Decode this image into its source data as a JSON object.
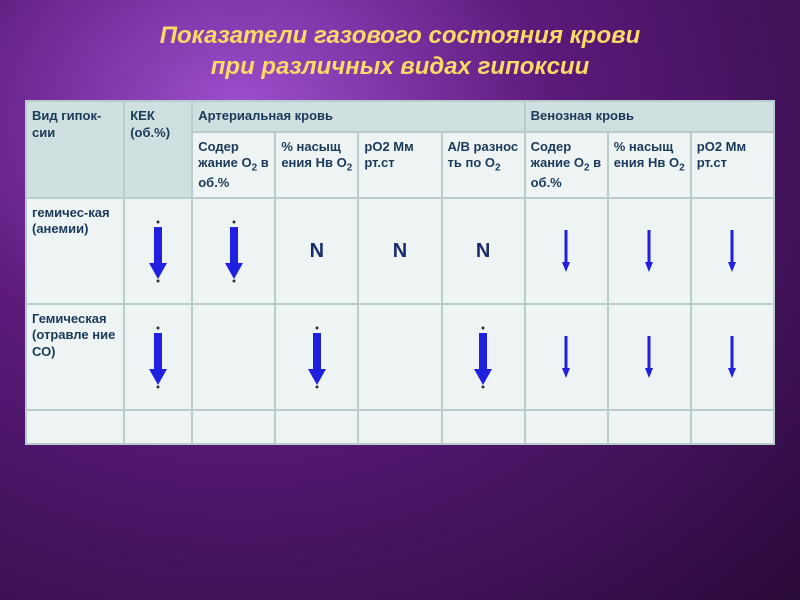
{
  "title_line1": "Показатели газового состояния крови",
  "title_line2": "при различных видах гипоксии",
  "colors": {
    "title": "#ffd966",
    "arrow": "#2020e0",
    "header_bg": "#d0e0e0",
    "cell_bg": "#eef4f4",
    "border": "#b8cccc",
    "text": "#1a3a5a"
  },
  "fonts": {
    "title_size": 24,
    "header_size": 13,
    "cell_size": 13,
    "value_size": 20
  },
  "columns": {
    "widths_percent": [
      13,
      9,
      11,
      11,
      11,
      11,
      11,
      11,
      11
    ],
    "main_headers": {
      "col0": "Вид гипок-сии",
      "col1": "КЕК (об.%)",
      "arterial": "Артериальная кровь",
      "venous": "Венозная кровь"
    },
    "sub_headers": {
      "c2": "Содер жание О₂ в об.%",
      "c3": "% насыщ ения Нв О₂",
      "c4": "рО2 Мм рт.ст",
      "c5": "А/В разнос ть по О₂",
      "c6": "Содер жание О₂ в об.%",
      "c7": "% насыщ ения Нв О₂",
      "c8": "рО2 Мм рт.ст"
    }
  },
  "rows": [
    {
      "label": "гемичес-кая (анемии)",
      "cells": [
        {
          "type": "arrow",
          "size": "large"
        },
        {
          "type": "arrow",
          "size": "large"
        },
        {
          "type": "text",
          "value": "N"
        },
        {
          "type": "text",
          "value": "N"
        },
        {
          "type": "text",
          "value": "N"
        },
        {
          "type": "arrow",
          "size": "small"
        },
        {
          "type": "arrow",
          "size": "small"
        },
        {
          "type": "arrow",
          "size": "small"
        }
      ]
    },
    {
      "label": "Гемическая (отравле ние СО)",
      "cells": [
        {
          "type": "arrow",
          "size": "large"
        },
        {
          "type": "empty"
        },
        {
          "type": "arrow",
          "size": "large"
        },
        {
          "type": "empty"
        },
        {
          "type": "arrow",
          "size": "large"
        },
        {
          "type": "arrow",
          "size": "small"
        },
        {
          "type": "arrow",
          "size": "small"
        },
        {
          "type": "arrow",
          "size": "small"
        }
      ]
    }
  ]
}
